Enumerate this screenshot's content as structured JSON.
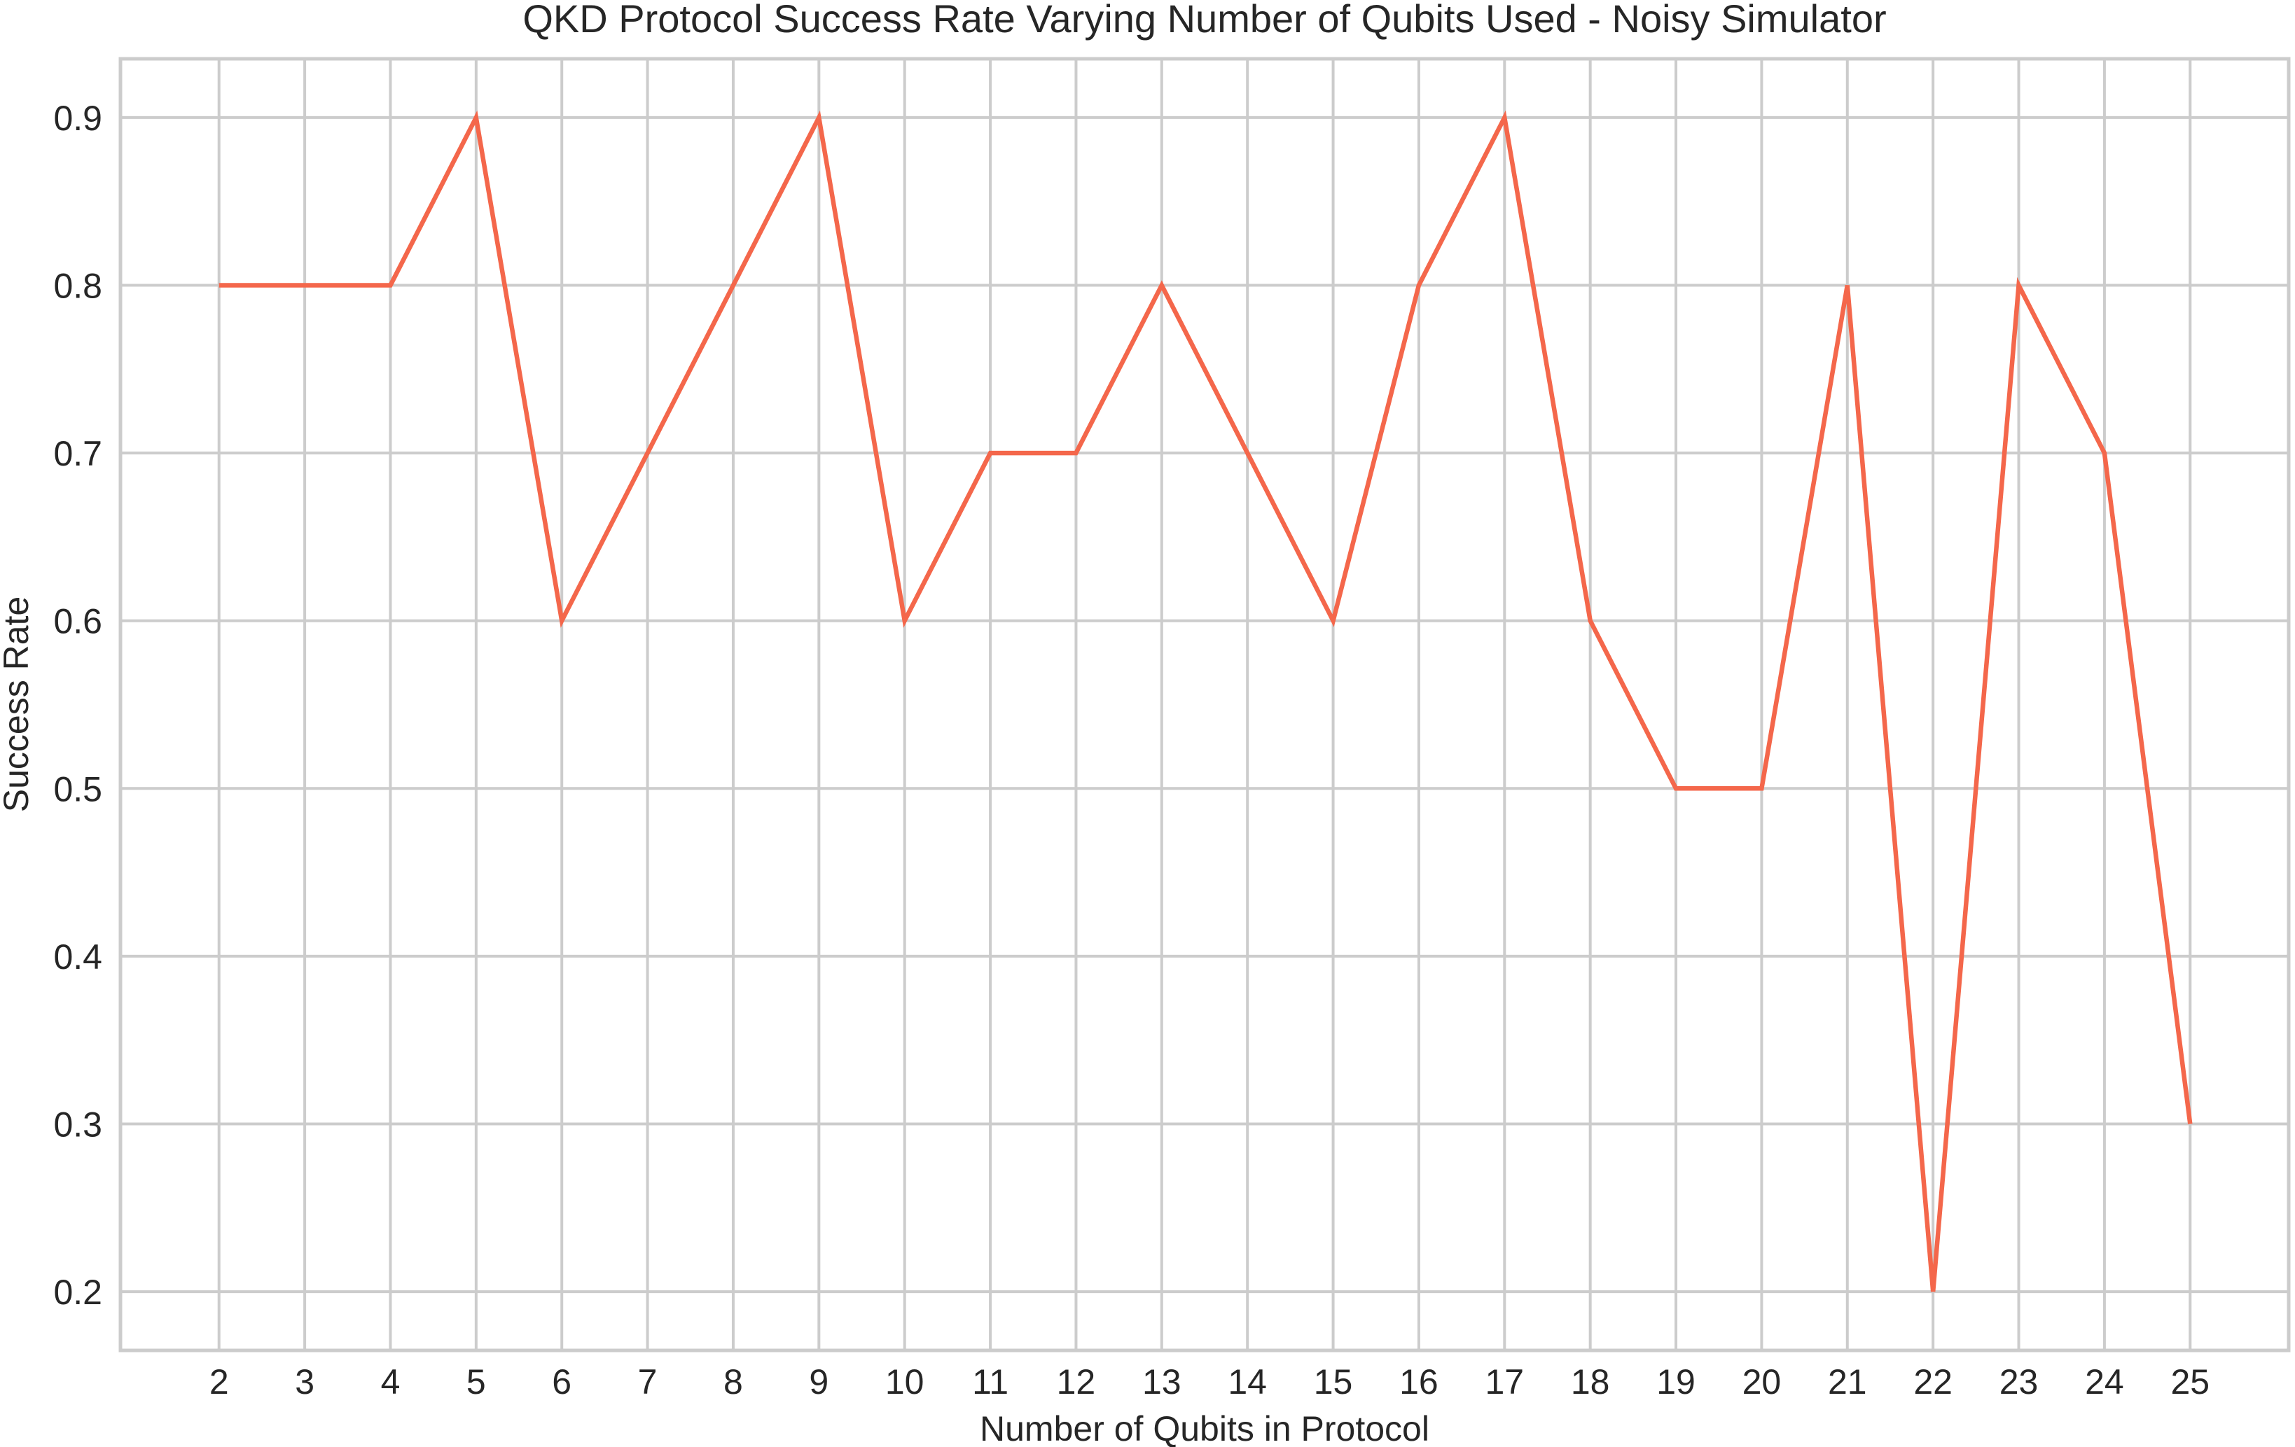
{
  "chart_data": {
    "type": "line",
    "title": "QKD Protocol Success Rate Varying Number of Qubits Used - Noisy Simulator",
    "xlabel": "Number of Qubits in Protocol",
    "ylabel": "Success Rate",
    "x": [
      2,
      3,
      4,
      5,
      6,
      7,
      8,
      9,
      10,
      11,
      12,
      13,
      14,
      15,
      16,
      17,
      18,
      19,
      20,
      21,
      22,
      23,
      24,
      25
    ],
    "series": [
      {
        "values": [
          0.8,
          0.8,
          0.8,
          0.9,
          0.6,
          0.7,
          0.8,
          0.9,
          0.6,
          0.7,
          0.7,
          0.8,
          0.7,
          0.6,
          0.8,
          0.9,
          0.6,
          0.5,
          0.5,
          0.8,
          0.2,
          0.8,
          0.7,
          0.3
        ],
        "color": "#f4674b"
      }
    ],
    "xticks": [
      "2",
      "3",
      "4",
      "5",
      "6",
      "7",
      "8",
      "9",
      "10",
      "11",
      "12",
      "13",
      "14",
      "15",
      "16",
      "17",
      "18",
      "19",
      "20",
      "21",
      "22",
      "23",
      "24",
      "25"
    ],
    "yticks": [
      "0.2",
      "0.3",
      "0.4",
      "0.5",
      "0.6",
      "0.7",
      "0.8",
      "0.9"
    ],
    "xlim": [
      0.85,
      26.15
    ],
    "ylim": [
      0.165,
      0.935
    ],
    "grid": true,
    "legend": false
  }
}
